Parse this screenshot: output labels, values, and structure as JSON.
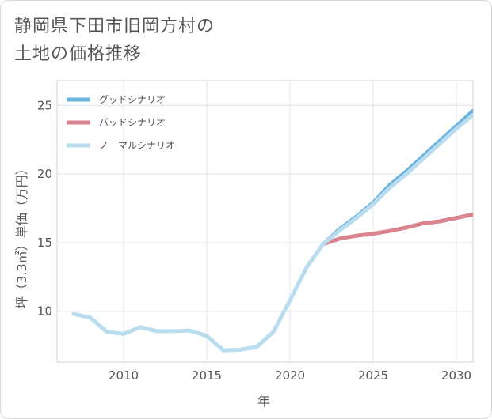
{
  "chart_data": {
    "type": "line",
    "title_lines": [
      "静岡県下田市旧岡方村の",
      "土地の価格推移"
    ],
    "xlabel": "年",
    "ylabel": "坪（3.3㎡）単価（万円）",
    "xlim": [
      2006,
      2031
    ],
    "ylim": [
      6.3,
      26.8
    ],
    "x_ticks": [
      2010,
      2015,
      2020,
      2025,
      2030
    ],
    "y_ticks": [
      10,
      15,
      20,
      25
    ],
    "series": [
      {
        "name": "グッドシナリオ",
        "color": "#6ab4e2",
        "x": [
          2022,
          2023,
          2024,
          2025,
          2026,
          2027,
          2028,
          2029,
          2030,
          2031
        ],
        "y": [
          14.9,
          16.0,
          16.9,
          17.9,
          19.2,
          20.2,
          21.3,
          22.4,
          23.5,
          24.6
        ]
      },
      {
        "name": "バッドシナリオ",
        "color": "#d9848e",
        "x": [
          2022,
          2023,
          2024,
          2025,
          2026,
          2027,
          2028,
          2029,
          2030,
          2031
        ],
        "y": [
          14.9,
          15.3,
          15.5,
          15.65,
          15.85,
          16.1,
          16.4,
          16.55,
          16.8,
          17.05
        ]
      },
      {
        "name": "ノーマルシナリオ",
        "color": "#b9dcef",
        "x": [
          2007,
          2008,
          2009,
          2010,
          2011,
          2012,
          2013,
          2014,
          2015,
          2016,
          2017,
          2018,
          2019,
          2020,
          2021,
          2022,
          2023,
          2024,
          2025,
          2026,
          2027,
          2028,
          2029,
          2030,
          2031
        ],
        "y": [
          9.8,
          9.55,
          8.5,
          8.35,
          8.85,
          8.55,
          8.55,
          8.6,
          8.2,
          7.15,
          7.2,
          7.4,
          8.5,
          10.8,
          13.2,
          14.9,
          15.9,
          16.8,
          17.8,
          19.0,
          20.0,
          21.1,
          22.2,
          23.3,
          24.3
        ]
      }
    ],
    "legend_position": "top-left"
  }
}
